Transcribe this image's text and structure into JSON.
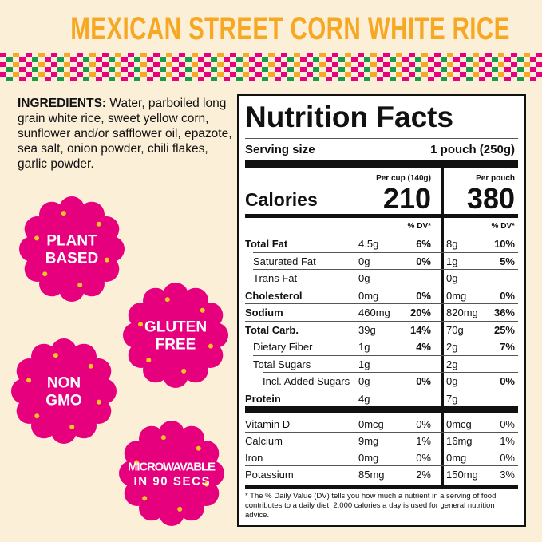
{
  "header": {
    "title": "MEXICAN STREET CORN WHITE RICE"
  },
  "ingredients": {
    "label": "INGREDIENTS:",
    "text": "Water, parboiled long grain white rice, sweet yellow corn, sunflower and/or safflower oil, epazote, sea salt, onion powder, chili flakes, garlic powder."
  },
  "badges": [
    [
      "PLANT",
      "BASED"
    ],
    [
      "GLUTEN",
      "FREE"
    ],
    [
      "NON",
      "GMO"
    ],
    [
      "MICROWAVABLE",
      "IN 90 SECS"
    ]
  ],
  "nutrition": {
    "title": "Nutrition Facts",
    "serving_label": "Serving size",
    "serving_value": "1 pouch (250g)",
    "col_headers": [
      "Per cup (140g)",
      "Per pouch"
    ],
    "calories_label": "Calories",
    "calories": [
      210,
      380
    ],
    "dv_header": "% DV*",
    "rows": [
      {
        "label": "Total Fat",
        "a1": "4.5g",
        "d1": "6%",
        "a2": "8g",
        "d2": "10%",
        "style": "bold"
      },
      {
        "label": "Saturated Fat",
        "a1": "0g",
        "d1": "0%",
        "a2": "1g",
        "d2": "5%",
        "style": "indent"
      },
      {
        "label": "Trans Fat",
        "a1": "0g",
        "a2": "0g",
        "style": "indent"
      },
      {
        "label": "Cholesterol",
        "a1": "0mg",
        "d1": "0%",
        "a2": "0mg",
        "d2": "0%",
        "style": "bold"
      },
      {
        "label": "Sodium",
        "a1": "460mg",
        "d1": "20%",
        "a2": "820mg",
        "d2": "36%",
        "style": "bold"
      },
      {
        "label": "Total Carb.",
        "a1": "39g",
        "d1": "14%",
        "a2": "70g",
        "d2": "25%",
        "style": "bold"
      },
      {
        "label": "Dietary Fiber",
        "a1": "1g",
        "d1": "4%",
        "a2": "2g",
        "d2": "7%",
        "style": "indent"
      },
      {
        "label": "Total Sugars",
        "a1": "1g",
        "a2": "2g",
        "style": "indent"
      },
      {
        "label": "Incl. Added Sugars",
        "a1": "0g",
        "d1": "0%",
        "a2": "0g",
        "d2": "0%",
        "style": "indent2"
      },
      {
        "label": "Protein",
        "a1": "4g",
        "a2": "7g",
        "style": "bold"
      }
    ],
    "vitamins": [
      {
        "label": "Vitamin D",
        "a1": "0mcg",
        "d1": "0%",
        "a2": "0mcg",
        "d2": "0%"
      },
      {
        "label": "Calcium",
        "a1": "9mg",
        "d1": "1%",
        "a2": "16mg",
        "d2": "1%"
      },
      {
        "label": "Iron",
        "a1": "0mg",
        "d1": "0%",
        "a2": "0mg",
        "d2": "0%"
      },
      {
        "label": "Potassium",
        "a1": "85mg",
        "d1": "2%",
        "a2": "150mg",
        "d2": "3%"
      }
    ],
    "footnote": "* The % Daily Value (DV) tells you how much a nutrient in a serving of food contributes to a daily diet. 2,000 calories a day is used for general nutrition advice."
  }
}
